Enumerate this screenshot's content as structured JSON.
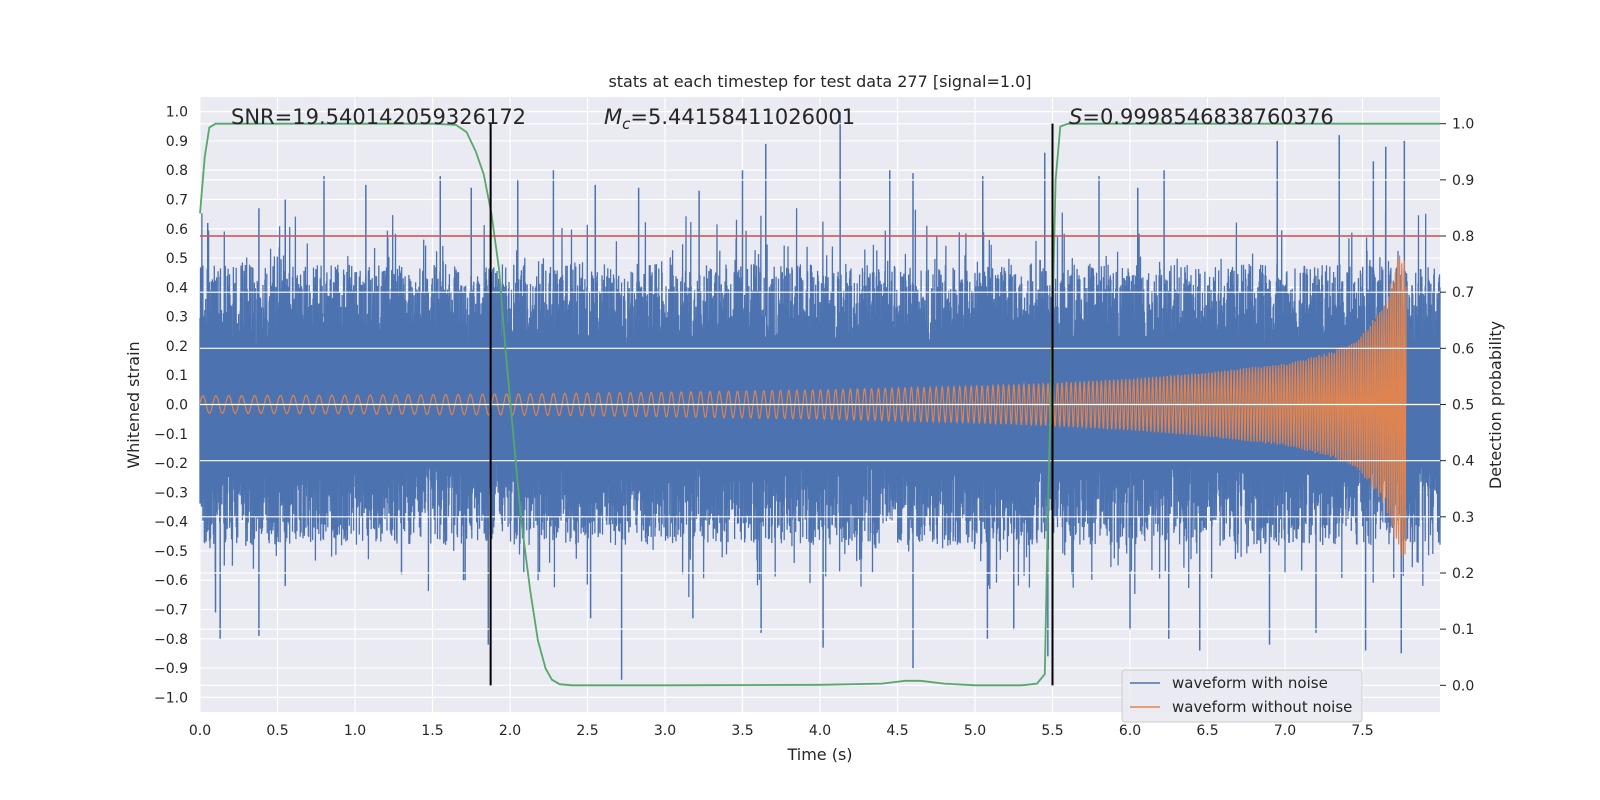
{
  "chart_data": {
    "type": "line",
    "title": "stats at each timestep for test data 277 [signal=1.0]",
    "xlabel": "Time (s)",
    "ylabel": "Whitened strain",
    "y2label": "Detection probability",
    "xlim": [
      0.0,
      8.0
    ],
    "ylim": [
      -1.05,
      1.05
    ],
    "y2lim": [
      -0.0475,
      1.0475
    ],
    "xticks": [
      0.0,
      0.5,
      1.0,
      1.5,
      2.0,
      2.5,
      3.0,
      3.5,
      4.0,
      4.5,
      5.0,
      5.5,
      6.0,
      6.5,
      7.0,
      7.5
    ],
    "xtick_labels": [
      "0.0",
      "0.5",
      "1.0",
      "1.5",
      "2.0",
      "2.5",
      "3.0",
      "3.5",
      "4.0",
      "4.5",
      "5.0",
      "5.5",
      "6.0",
      "6.5",
      "7.0",
      "7.5"
    ],
    "yticks": [
      1.0,
      0.9,
      0.8,
      0.7,
      0.6,
      0.5,
      0.4,
      0.3,
      0.2,
      0.1,
      0.0,
      -0.1,
      -0.2,
      -0.3,
      -0.4,
      -0.5,
      -0.6,
      -0.7,
      -0.8,
      -0.9,
      -1.0
    ],
    "ytick_labels": [
      "1.0",
      "0.9",
      "0.8",
      "0.7",
      "0.6",
      "0.5",
      "0.4",
      "0.3",
      "0.2",
      "0.1",
      "0.0",
      "−0.1",
      "−0.2",
      "−0.3",
      "−0.4",
      "−0.5",
      "−0.6",
      "−0.7",
      "−0.8",
      "−0.9",
      "−1.0"
    ],
    "y2ticks": [
      1.0,
      0.9,
      0.8,
      0.7,
      0.6,
      0.5,
      0.4,
      0.3,
      0.2,
      0.1,
      0.0
    ],
    "y2tick_labels": [
      "1.0",
      "0.9",
      "0.8",
      "0.7",
      "0.6",
      "0.5",
      "0.4",
      "0.3",
      "0.2",
      "0.1",
      "0.0"
    ],
    "grid": true,
    "legend_placement": "lower-right",
    "annotations": {
      "snr": "SNR=19.540142059326172",
      "mc_symbol": "M",
      "mc_sub": "c",
      "mc_value": "=5.44158411026001",
      "s_symbol": "S",
      "s_value": "=0.9998546838760376"
    },
    "series": [
      {
        "name": "waveform with noise",
        "color": "#4c72b0",
        "envelope_peaks_upper": [
          [
            0.05,
            0.62
          ],
          [
            0.38,
            0.67
          ],
          [
            0.55,
            0.7
          ],
          [
            0.8,
            0.78
          ],
          [
            1.07,
            0.75
          ],
          [
            1.55,
            0.78
          ],
          [
            1.75,
            0.74
          ],
          [
            2.05,
            0.77
          ],
          [
            2.28,
            0.8
          ],
          [
            2.55,
            0.75
          ],
          [
            2.83,
            0.74
          ],
          [
            3.22,
            0.73
          ],
          [
            3.5,
            0.8
          ],
          [
            3.65,
            0.89
          ],
          [
            4.13,
            1.0
          ],
          [
            4.45,
            0.8
          ],
          [
            4.6,
            0.79
          ],
          [
            5.05,
            0.78
          ],
          [
            5.45,
            0.86
          ],
          [
            5.8,
            0.78
          ],
          [
            6.05,
            0.74
          ],
          [
            6.22,
            0.8
          ],
          [
            6.95,
            0.9
          ],
          [
            7.35,
            0.92
          ],
          [
            7.57,
            0.83
          ],
          [
            7.65,
            0.88
          ],
          [
            7.77,
            0.9
          ]
        ],
        "envelope_peaks_lower": [
          [
            0.1,
            -0.71
          ],
          [
            0.13,
            -0.8
          ],
          [
            0.38,
            -0.79
          ],
          [
            0.55,
            -0.62
          ],
          [
            1.3,
            -0.58
          ],
          [
            1.7,
            -0.6
          ],
          [
            1.86,
            -0.82
          ],
          [
            2.52,
            -0.73
          ],
          [
            2.72,
            -0.94
          ],
          [
            3.18,
            -0.73
          ],
          [
            3.62,
            -0.78
          ],
          [
            4.02,
            -0.83
          ],
          [
            4.6,
            -0.9
          ],
          [
            5.08,
            -0.8
          ],
          [
            5.25,
            -0.77
          ],
          [
            5.47,
            -0.86
          ],
          [
            6.0,
            -0.77
          ],
          [
            6.25,
            -0.8
          ],
          [
            6.45,
            -0.84
          ],
          [
            6.9,
            -0.82
          ],
          [
            7.2,
            -0.78
          ],
          [
            7.52,
            -0.84
          ],
          [
            7.75,
            -0.85
          ]
        ]
      },
      {
        "name": "waveform without noise",
        "color": "#dd8452",
        "amplitude_points": [
          [
            0.0,
            0.03
          ],
          [
            1.0,
            0.032
          ],
          [
            2.0,
            0.036
          ],
          [
            3.0,
            0.042
          ],
          [
            4.0,
            0.05
          ],
          [
            5.0,
            0.063
          ],
          [
            5.5,
            0.073
          ],
          [
            6.0,
            0.088
          ],
          [
            6.5,
            0.11
          ],
          [
            7.0,
            0.14
          ],
          [
            7.3,
            0.18
          ],
          [
            7.5,
            0.24
          ],
          [
            7.65,
            0.35
          ],
          [
            7.74,
            0.52
          ],
          [
            7.78,
            0.52
          ]
        ],
        "merger_time": 7.78
      },
      {
        "name": "detection probability",
        "color": "#55a868",
        "axis": "right",
        "x": [
          0.0,
          0.03,
          0.06,
          0.1,
          0.15,
          0.5,
          1.0,
          1.5,
          1.65,
          1.72,
          1.78,
          1.83,
          1.88,
          1.93,
          1.97,
          2.02,
          2.07,
          2.13,
          2.18,
          2.23,
          2.27,
          2.32,
          2.4,
          3.0,
          4.0,
          4.4,
          4.55,
          4.65,
          4.8,
          5.0,
          5.3,
          5.4,
          5.45,
          5.47,
          5.5,
          5.52,
          5.55,
          5.6,
          6.0,
          7.0,
          8.0
        ],
        "values": [
          0.84,
          0.94,
          0.993,
          1.0,
          1.0,
          1.0,
          1.0,
          1.0,
          0.998,
          0.985,
          0.95,
          0.91,
          0.84,
          0.74,
          0.6,
          0.45,
          0.3,
          0.17,
          0.08,
          0.03,
          0.01,
          0.002,
          0.0,
          0.0,
          0.001,
          0.003,
          0.008,
          0.008,
          0.003,
          0.0,
          0.0,
          0.003,
          0.02,
          0.3,
          0.65,
          0.9,
          0.995,
          1.0,
          1.0,
          1.0,
          1.0
        ]
      }
    ],
    "threshold_line": {
      "y": 0.8,
      "color": "#c44e52"
    },
    "vertical_lines": [
      1.875,
      5.5
    ],
    "legend": [
      {
        "label": "waveform with noise",
        "color": "#4c72b0"
      },
      {
        "label": "waveform without noise",
        "color": "#dd8452"
      }
    ]
  }
}
